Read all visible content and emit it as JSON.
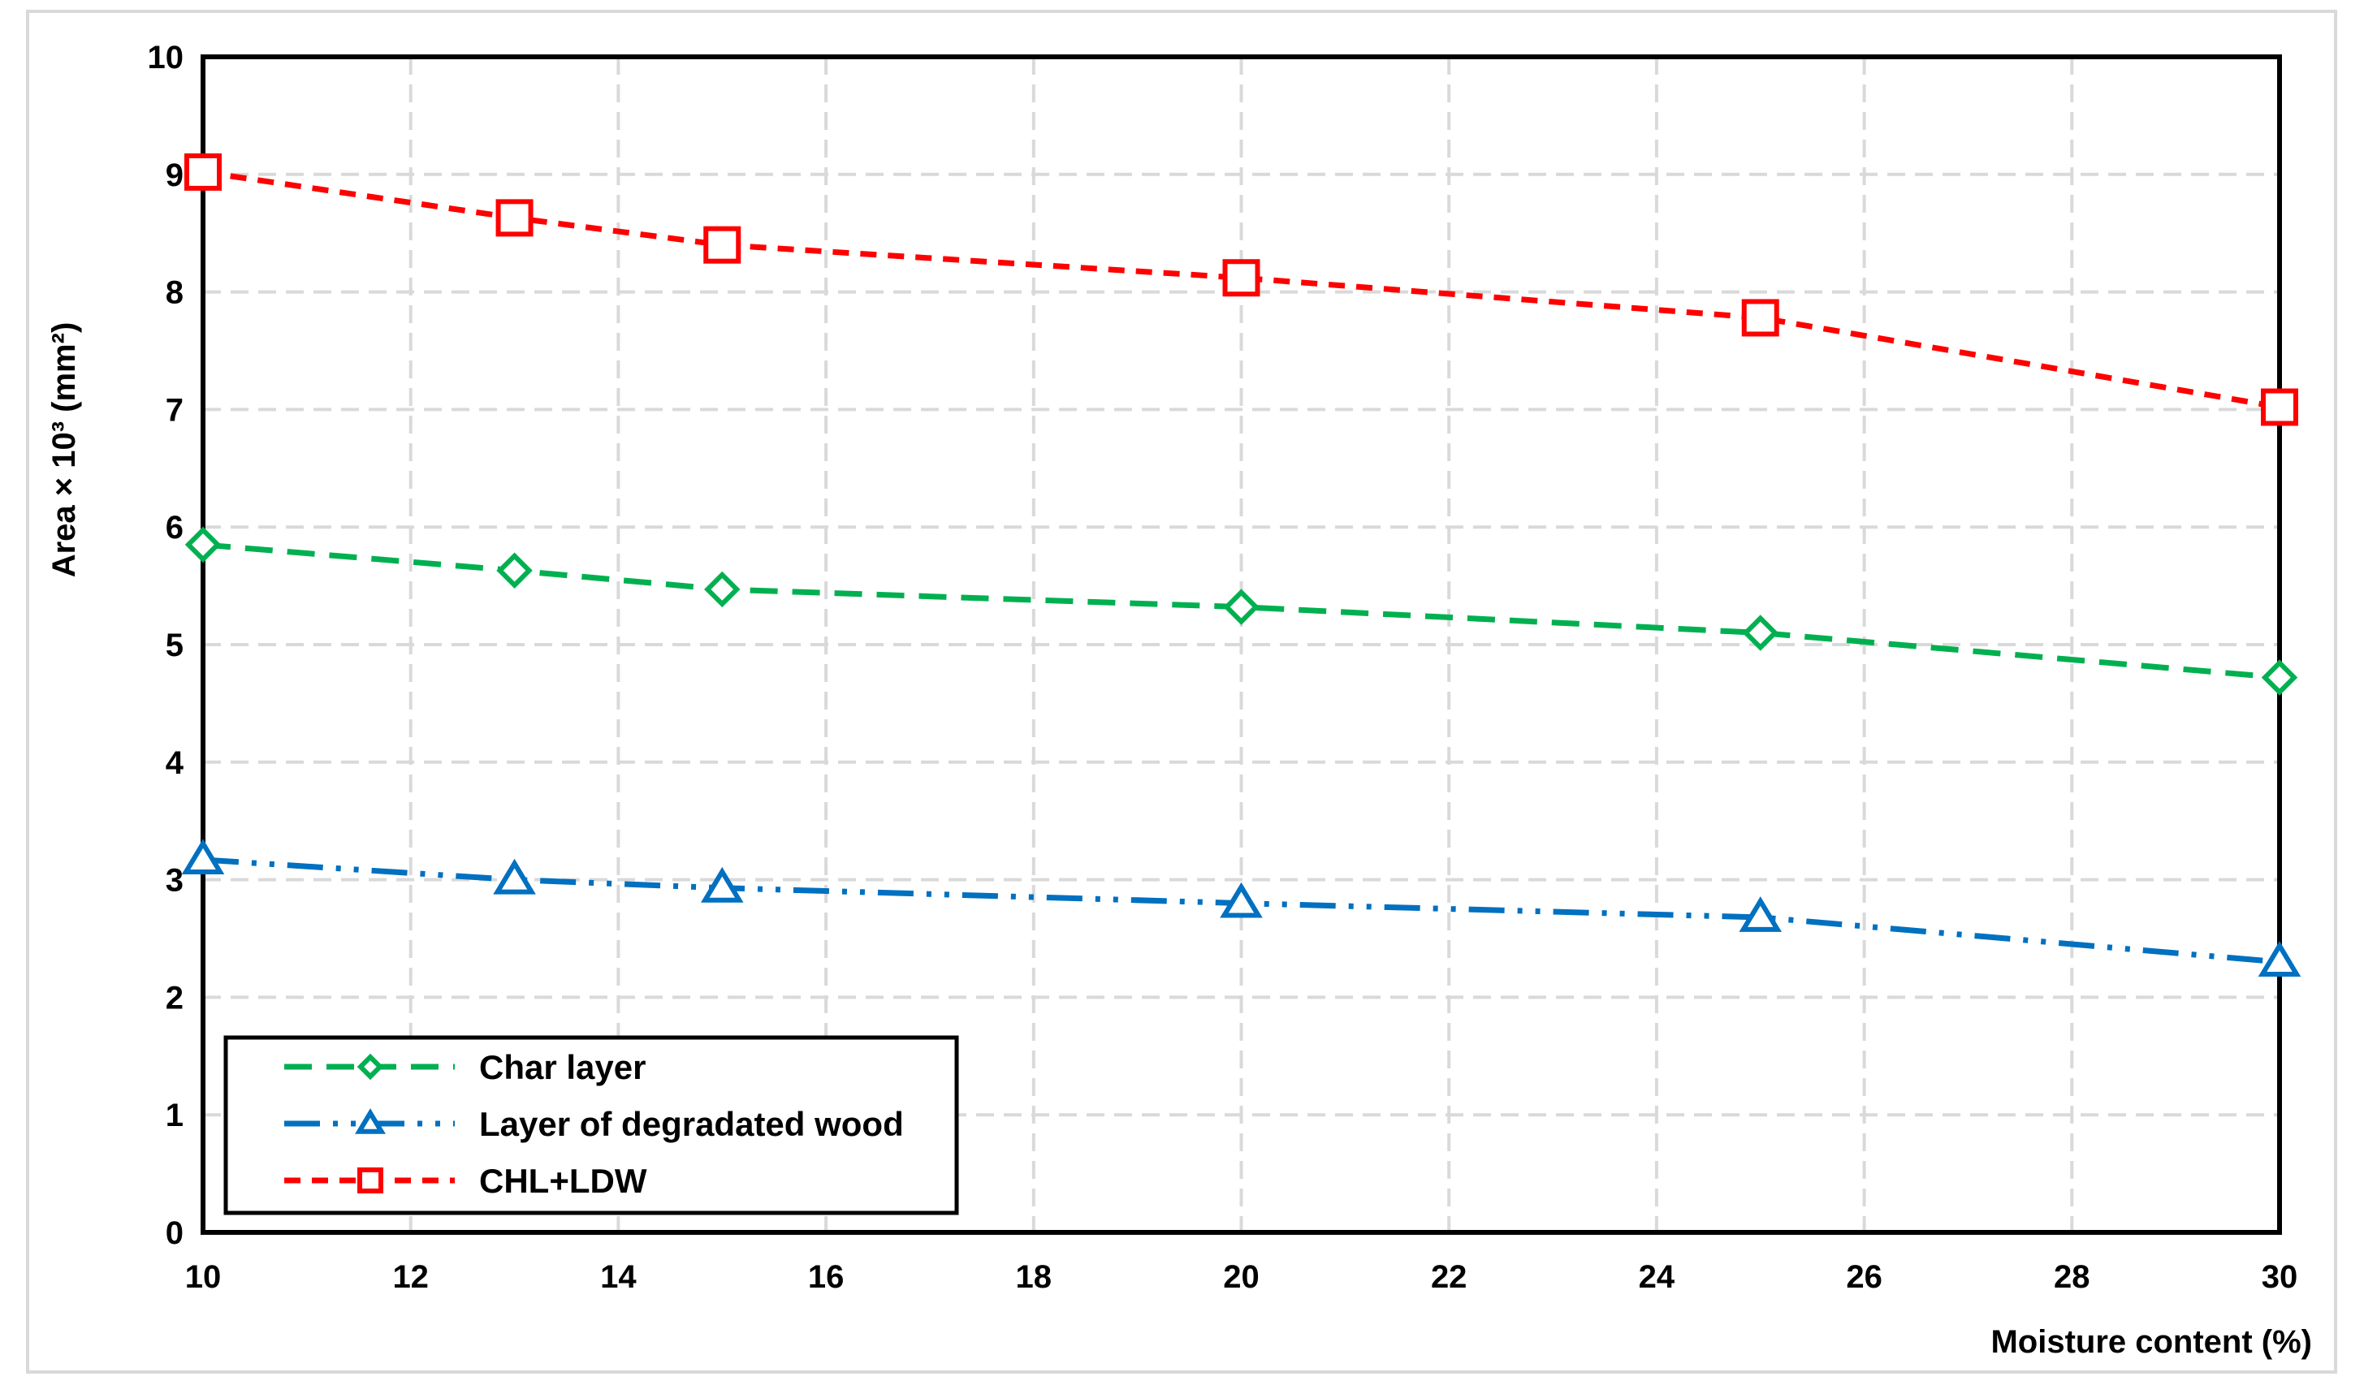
{
  "chart_data": {
    "type": "line",
    "xlabel": "Moisture content (%)",
    "ylabel": "Area × 10³ (mm²)",
    "xlim": [
      10,
      30
    ],
    "ylim": [
      0,
      10
    ],
    "x_ticks": [
      "10",
      "12",
      "14",
      "16",
      "18",
      "20",
      "22",
      "24",
      "26",
      "28",
      "30"
    ],
    "y_ticks": [
      "0",
      "1",
      "2",
      "3",
      "4",
      "5",
      "6",
      "7",
      "8",
      "9",
      "10"
    ],
    "grid": true,
    "legend_position": "bottom-left",
    "x": [
      10,
      13,
      15,
      20,
      25,
      30
    ],
    "series": [
      {
        "name": "Char layer",
        "values": [
          5.85,
          5.63,
          5.47,
          5.32,
          5.1,
          4.72
        ],
        "color": "#00b050",
        "marker": "diamond",
        "dash": "dashed"
      },
      {
        "name": "Layer of degradated wood",
        "values": [
          3.17,
          3.0,
          2.93,
          2.8,
          2.68,
          2.3
        ],
        "color": "#0070c0",
        "marker": "triangle",
        "dash": "dash-dot-dot"
      },
      {
        "name": "CHL+LDW",
        "values": [
          9.02,
          8.63,
          8.4,
          8.12,
          7.78,
          7.02
        ],
        "color": "#ff0000",
        "marker": "square",
        "dash": "short-dash"
      }
    ]
  }
}
